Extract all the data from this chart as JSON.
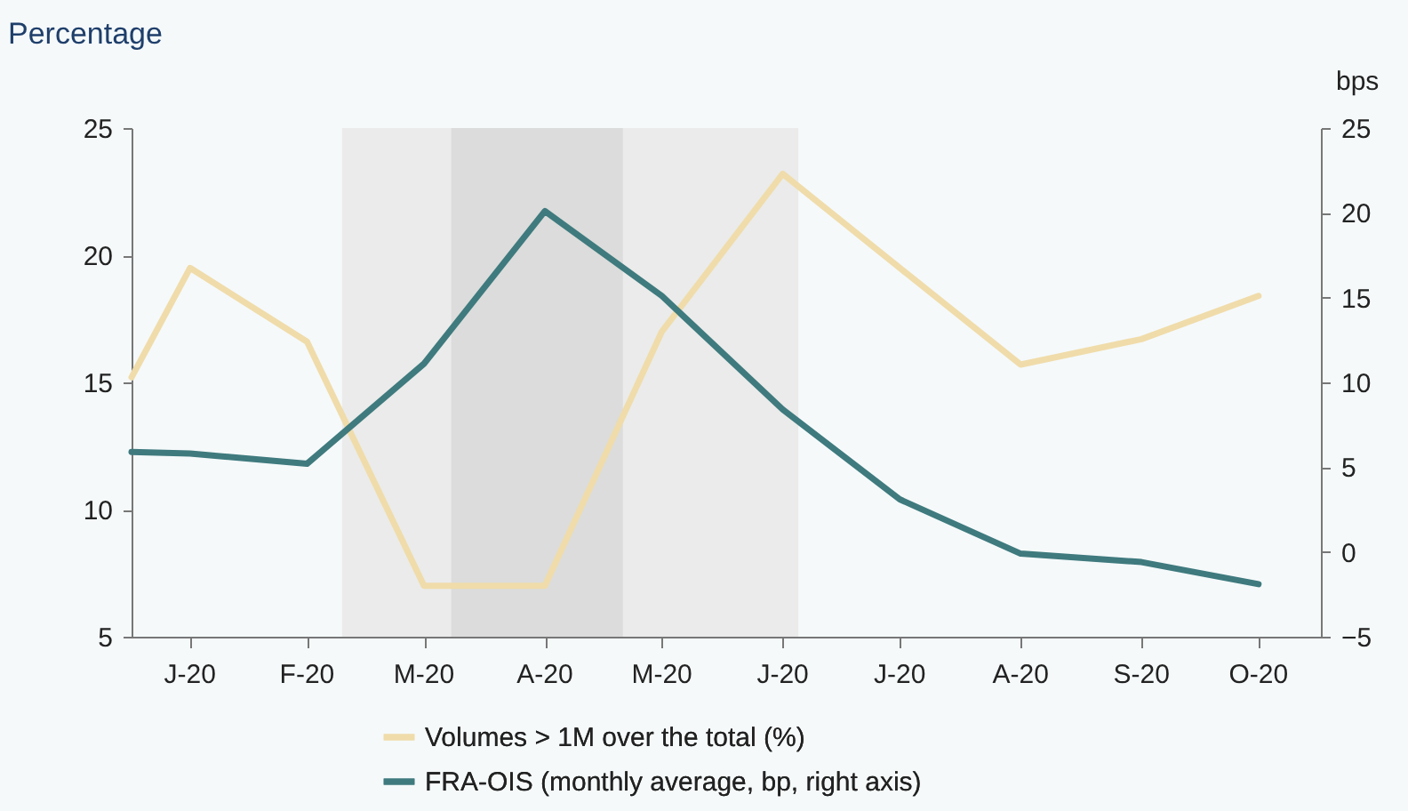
{
  "chart_data": {
    "type": "line",
    "ylabel": "Percentage",
    "y2label": "bps",
    "x": [
      "2020-01-01",
      "2020-01-16",
      "2020-02-15",
      "2020-03-16",
      "2020-04-16",
      "2020-05-16",
      "2020-06-16",
      "2020-07-16",
      "2020-08-16",
      "2020-09-16",
      "2020-10-16"
    ],
    "xlim": [
      "2020-01-01",
      "2020-11-01"
    ],
    "xticks": [
      {
        "value": "2020-01-16",
        "label": "J-20"
      },
      {
        "value": "2020-02-15",
        "label": "F-20"
      },
      {
        "value": "2020-03-16",
        "label": "M-20"
      },
      {
        "value": "2020-04-16",
        "label": "A-20"
      },
      {
        "value": "2020-05-16",
        "label": "M-20"
      },
      {
        "value": "2020-06-16",
        "label": "J-20"
      },
      {
        "value": "2020-07-16",
        "label": "J-20"
      },
      {
        "value": "2020-08-16",
        "label": "A-20"
      },
      {
        "value": "2020-09-16",
        "label": "S-20"
      },
      {
        "value": "2020-10-16",
        "label": "O-20"
      }
    ],
    "ylim": [
      5,
      25
    ],
    "yticks": [
      5,
      10,
      15,
      20,
      25
    ],
    "y2lim": [
      -5,
      25
    ],
    "y2ticks": [
      -5,
      0,
      5,
      10,
      15,
      20,
      25
    ],
    "series": [
      {
        "name": "Volumes > 1M over the total (%)",
        "color": "#f0dcaa",
        "values": [
          15.2,
          19.5,
          16.6,
          7.0,
          7.0,
          17.0,
          23.2,
          19.5,
          15.7,
          16.7,
          18.4
        ]
      },
      {
        "name": "FRA-OIS (monthly average, bp, right axis)",
        "color": "#3f7a7e",
        "axis": "y2",
        "values": [
          5.9,
          5.8,
          5.2,
          11.1,
          20.1,
          15.1,
          8.4,
          3.1,
          -0.1,
          -0.6,
          -1.9
        ]
      }
    ],
    "bands": [
      {
        "axis": "x",
        "from": "2020-02-24",
        "to": "2020-06-20",
        "color": "#eaebea"
      },
      {
        "axis": "x",
        "from": "2020-03-23",
        "to": "2020-05-06",
        "color": "#dbdcdb"
      }
    ],
    "grid": false,
    "marker": "none",
    "line_style": "solid",
    "legend": "bottom"
  }
}
